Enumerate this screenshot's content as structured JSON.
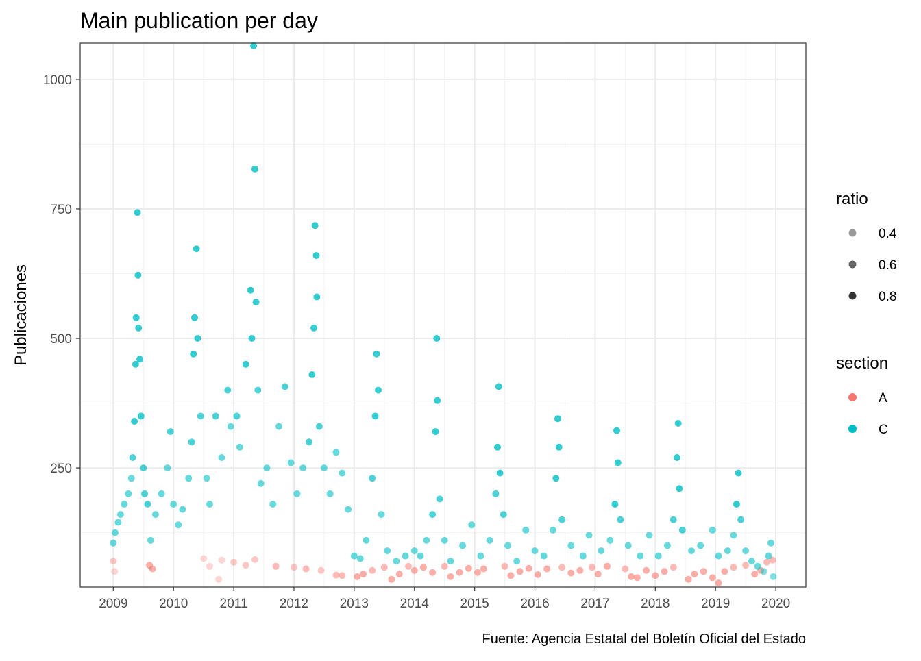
{
  "chart_data": {
    "type": "scatter",
    "title": "Main publication per day",
    "xlabel": "",
    "ylabel": "Publicaciones",
    "caption": "Fuente: Agencia Estatal del Boletín Oficial del Estado",
    "xlim": [
      2008.45,
      2020.5
    ],
    "ylim": [
      20,
      1070
    ],
    "x_ticks": [
      2009,
      2010,
      2011,
      2012,
      2013,
      2014,
      2015,
      2016,
      2017,
      2018,
      2019,
      2020
    ],
    "x_tick_labels": [
      "2009",
      "2010",
      "2011",
      "2012",
      "2013",
      "2014",
      "2015",
      "2016",
      "2017",
      "2018",
      "2019",
      "2020"
    ],
    "y_ticks": [
      250,
      500,
      750,
      1000
    ],
    "y_tick_labels": [
      "250",
      "500",
      "750",
      "1000"
    ],
    "grid": true,
    "legend_position": "right",
    "legend_ratio": {
      "title": "ratio",
      "items": [
        {
          "label": "0.4",
          "alpha": 0.4
        },
        {
          "label": "0.6",
          "alpha": 0.6
        },
        {
          "label": "0.8",
          "alpha": 0.8
        }
      ]
    },
    "legend_section": {
      "title": "section",
      "items": [
        {
          "label": "A",
          "color": "#F8766D"
        },
        {
          "label": "C",
          "color": "#00BFC4"
        }
      ]
    },
    "series": [
      {
        "name": "A",
        "color": "#F8766D",
        "points": [
          [
            2009.0,
            70,
            0.4
          ],
          [
            2009.02,
            50,
            0.3
          ],
          [
            2009.6,
            62,
            0.6
          ],
          [
            2009.65,
            55,
            0.6
          ],
          [
            2010.5,
            75,
            0.3
          ],
          [
            2010.6,
            60,
            0.3
          ],
          [
            2010.75,
            35,
            0.3
          ],
          [
            2010.8,
            72,
            0.3
          ],
          [
            2011.0,
            68,
            0.4
          ],
          [
            2011.2,
            62,
            0.4
          ],
          [
            2011.35,
            73,
            0.4
          ],
          [
            2011.7,
            60,
            0.5
          ],
          [
            2012.0,
            58,
            0.4
          ],
          [
            2012.2,
            55,
            0.5
          ],
          [
            2012.45,
            52,
            0.4
          ],
          [
            2012.7,
            43,
            0.5
          ],
          [
            2012.8,
            42,
            0.5
          ],
          [
            2013.05,
            40,
            0.6
          ],
          [
            2013.15,
            45,
            0.6
          ],
          [
            2013.3,
            52,
            0.5
          ],
          [
            2013.5,
            58,
            0.5
          ],
          [
            2013.62,
            35,
            0.6
          ],
          [
            2013.75,
            45,
            0.6
          ],
          [
            2013.9,
            60,
            0.5
          ],
          [
            2014.0,
            52,
            0.6
          ],
          [
            2014.15,
            58,
            0.6
          ],
          [
            2014.3,
            48,
            0.6
          ],
          [
            2014.5,
            60,
            0.5
          ],
          [
            2014.6,
            40,
            0.6
          ],
          [
            2014.75,
            48,
            0.6
          ],
          [
            2014.9,
            56,
            0.6
          ],
          [
            2015.05,
            48,
            0.6
          ],
          [
            2015.15,
            55,
            0.6
          ],
          [
            2015.5,
            60,
            0.5
          ],
          [
            2015.6,
            42,
            0.6
          ],
          [
            2015.75,
            50,
            0.6
          ],
          [
            2015.9,
            56,
            0.6
          ],
          [
            2016.05,
            44,
            0.6
          ],
          [
            2016.2,
            55,
            0.6
          ],
          [
            2016.45,
            58,
            0.5
          ],
          [
            2016.6,
            47,
            0.6
          ],
          [
            2016.75,
            52,
            0.6
          ],
          [
            2016.95,
            58,
            0.5
          ],
          [
            2017.05,
            45,
            0.6
          ],
          [
            2017.2,
            60,
            0.6
          ],
          [
            2017.5,
            55,
            0.5
          ],
          [
            2017.6,
            40,
            0.6
          ],
          [
            2017.7,
            38,
            0.6
          ],
          [
            2017.85,
            52,
            0.6
          ],
          [
            2018.0,
            42,
            0.6
          ],
          [
            2018.15,
            50,
            0.6
          ],
          [
            2018.3,
            58,
            0.5
          ],
          [
            2018.55,
            35,
            0.6
          ],
          [
            2018.65,
            45,
            0.6
          ],
          [
            2018.8,
            50,
            0.6
          ],
          [
            2018.95,
            38,
            0.6
          ],
          [
            2019.05,
            28,
            0.6
          ],
          [
            2019.15,
            50,
            0.6
          ],
          [
            2019.3,
            58,
            0.5
          ],
          [
            2019.5,
            62,
            0.5
          ],
          [
            2019.65,
            45,
            0.6
          ],
          [
            2019.75,
            52,
            0.6
          ],
          [
            2019.85,
            68,
            0.5
          ],
          [
            2019.95,
            72,
            0.5
          ]
        ]
      },
      {
        "name": "C",
        "color": "#00BFC4",
        "points": [
          [
            2009.0,
            105,
            0.6
          ],
          [
            2009.03,
            125,
            0.6
          ],
          [
            2009.08,
            145,
            0.6
          ],
          [
            2009.12,
            160,
            0.6
          ],
          [
            2009.18,
            180,
            0.6
          ],
          [
            2009.25,
            200,
            0.6
          ],
          [
            2009.3,
            230,
            0.6
          ],
          [
            2009.32,
            270,
            0.7
          ],
          [
            2009.35,
            340,
            0.8
          ],
          [
            2009.37,
            450,
            0.8
          ],
          [
            2009.38,
            540,
            0.8
          ],
          [
            2009.4,
            743,
            0.8
          ],
          [
            2009.41,
            622,
            0.8
          ],
          [
            2009.42,
            520,
            0.8
          ],
          [
            2009.44,
            460,
            0.8
          ],
          [
            2009.46,
            350,
            0.8
          ],
          [
            2009.5,
            250,
            0.7
          ],
          [
            2009.52,
            200,
            0.7
          ],
          [
            2009.57,
            180,
            0.7
          ],
          [
            2009.62,
            110,
            0.6
          ],
          [
            2009.7,
            160,
            0.6
          ],
          [
            2009.8,
            200,
            0.6
          ],
          [
            2009.9,
            250,
            0.6
          ],
          [
            2009.95,
            320,
            0.7
          ],
          [
            2010.0,
            180,
            0.6
          ],
          [
            2010.08,
            140,
            0.6
          ],
          [
            2010.15,
            170,
            0.6
          ],
          [
            2010.25,
            230,
            0.6
          ],
          [
            2010.3,
            300,
            0.7
          ],
          [
            2010.33,
            470,
            0.8
          ],
          [
            2010.35,
            540,
            0.8
          ],
          [
            2010.38,
            673,
            0.8
          ],
          [
            2010.4,
            500,
            0.8
          ],
          [
            2010.45,
            350,
            0.7
          ],
          [
            2010.55,
            230,
            0.6
          ],
          [
            2010.6,
            180,
            0.6
          ],
          [
            2010.7,
            350,
            0.7
          ],
          [
            2010.8,
            270,
            0.6
          ],
          [
            2010.9,
            400,
            0.7
          ],
          [
            2010.95,
            330,
            0.6
          ],
          [
            2011.05,
            350,
            0.7
          ],
          [
            2011.1,
            290,
            0.6
          ],
          [
            2011.2,
            450,
            0.8
          ],
          [
            2011.28,
            593,
            0.8
          ],
          [
            2011.3,
            500,
            0.8
          ],
          [
            2011.33,
            1065,
            0.8
          ],
          [
            2011.35,
            827,
            0.8
          ],
          [
            2011.37,
            570,
            0.8
          ],
          [
            2011.4,
            400,
            0.7
          ],
          [
            2011.45,
            220,
            0.6
          ],
          [
            2011.55,
            250,
            0.6
          ],
          [
            2011.65,
            180,
            0.6
          ],
          [
            2011.75,
            330,
            0.6
          ],
          [
            2011.85,
            407,
            0.7
          ],
          [
            2011.95,
            260,
            0.6
          ],
          [
            2012.05,
            200,
            0.6
          ],
          [
            2012.15,
            250,
            0.6
          ],
          [
            2012.25,
            300,
            0.7
          ],
          [
            2012.3,
            430,
            0.8
          ],
          [
            2012.33,
            520,
            0.8
          ],
          [
            2012.35,
            718,
            0.8
          ],
          [
            2012.37,
            660,
            0.8
          ],
          [
            2012.38,
            580,
            0.8
          ],
          [
            2012.42,
            330,
            0.7
          ],
          [
            2012.5,
            250,
            0.6
          ],
          [
            2012.6,
            200,
            0.6
          ],
          [
            2012.7,
            280,
            0.6
          ],
          [
            2012.8,
            240,
            0.6
          ],
          [
            2012.9,
            170,
            0.6
          ],
          [
            2013.0,
            80,
            0.6
          ],
          [
            2013.1,
            75,
            0.6
          ],
          [
            2013.2,
            110,
            0.6
          ],
          [
            2013.3,
            230,
            0.7
          ],
          [
            2013.35,
            350,
            0.8
          ],
          [
            2013.37,
            470,
            0.8
          ],
          [
            2013.4,
            400,
            0.8
          ],
          [
            2013.45,
            160,
            0.6
          ],
          [
            2013.55,
            90,
            0.6
          ],
          [
            2013.7,
            70,
            0.6
          ],
          [
            2013.85,
            80,
            0.6
          ],
          [
            2014.0,
            90,
            0.6
          ],
          [
            2014.1,
            80,
            0.6
          ],
          [
            2014.2,
            110,
            0.6
          ],
          [
            2014.3,
            160,
            0.7
          ],
          [
            2014.35,
            320,
            0.8
          ],
          [
            2014.37,
            500,
            0.8
          ],
          [
            2014.38,
            380,
            0.8
          ],
          [
            2014.42,
            190,
            0.7
          ],
          [
            2014.5,
            110,
            0.6
          ],
          [
            2014.6,
            70,
            0.6
          ],
          [
            2014.8,
            100,
            0.6
          ],
          [
            2014.95,
            140,
            0.6
          ],
          [
            2015.1,
            80,
            0.6
          ],
          [
            2015.25,
            110,
            0.6
          ],
          [
            2015.35,
            200,
            0.7
          ],
          [
            2015.38,
            290,
            0.8
          ],
          [
            2015.4,
            407,
            0.8
          ],
          [
            2015.42,
            240,
            0.8
          ],
          [
            2015.48,
            160,
            0.7
          ],
          [
            2015.55,
            100,
            0.6
          ],
          [
            2015.7,
            70,
            0.6
          ],
          [
            2015.85,
            130,
            0.6
          ],
          [
            2016.0,
            90,
            0.6
          ],
          [
            2016.15,
            80,
            0.6
          ],
          [
            2016.3,
            130,
            0.6
          ],
          [
            2016.35,
            230,
            0.8
          ],
          [
            2016.38,
            345,
            0.8
          ],
          [
            2016.4,
            290,
            0.8
          ],
          [
            2016.45,
            150,
            0.7
          ],
          [
            2016.6,
            100,
            0.6
          ],
          [
            2016.8,
            80,
            0.6
          ],
          [
            2016.9,
            120,
            0.6
          ],
          [
            2017.1,
            90,
            0.6
          ],
          [
            2017.25,
            110,
            0.6
          ],
          [
            2017.33,
            180,
            0.8
          ],
          [
            2017.36,
            322,
            0.8
          ],
          [
            2017.38,
            260,
            0.8
          ],
          [
            2017.42,
            150,
            0.7
          ],
          [
            2017.55,
            100,
            0.6
          ],
          [
            2017.75,
            80,
            0.6
          ],
          [
            2017.9,
            120,
            0.6
          ],
          [
            2018.05,
            80,
            0.6
          ],
          [
            2018.2,
            100,
            0.6
          ],
          [
            2018.3,
            150,
            0.7
          ],
          [
            2018.36,
            270,
            0.8
          ],
          [
            2018.38,
            336,
            0.8
          ],
          [
            2018.4,
            210,
            0.8
          ],
          [
            2018.45,
            130,
            0.7
          ],
          [
            2018.6,
            90,
            0.6
          ],
          [
            2018.75,
            100,
            0.6
          ],
          [
            2018.95,
            130,
            0.6
          ],
          [
            2019.05,
            80,
            0.6
          ],
          [
            2019.2,
            90,
            0.6
          ],
          [
            2019.3,
            120,
            0.6
          ],
          [
            2019.35,
            180,
            0.8
          ],
          [
            2019.38,
            240,
            0.8
          ],
          [
            2019.42,
            150,
            0.7
          ],
          [
            2019.5,
            90,
            0.6
          ],
          [
            2019.6,
            70,
            0.6
          ],
          [
            2019.7,
            60,
            0.6
          ],
          [
            2019.8,
            50,
            0.5
          ],
          [
            2019.88,
            80,
            0.6
          ],
          [
            2019.92,
            105,
            0.6
          ],
          [
            2019.96,
            40,
            0.5
          ]
        ]
      }
    ]
  }
}
